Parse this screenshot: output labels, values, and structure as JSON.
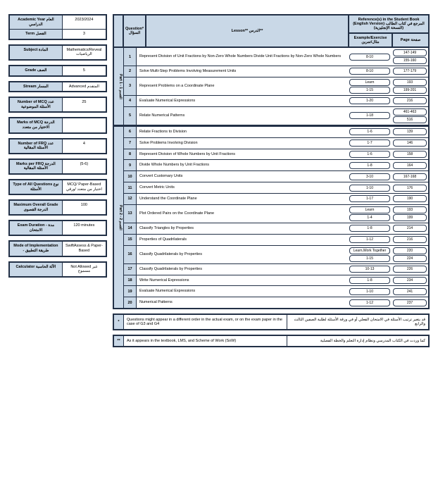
{
  "colors": {
    "border": "#223046",
    "header_bg": "#c9d8e7",
    "cell_bg": "#ffffff"
  },
  "sidebar": {
    "blocks": [
      [
        {
          "label": "Academic Year\nالعام الدراسي",
          "value": "2023/2024"
        },
        {
          "label": "Term\nالفصل",
          "value": "3"
        }
      ],
      [
        {
          "label": "Subject\nالمادة",
          "value": "Mathematics/Reveal\nالرياضيات"
        }
      ],
      [
        {
          "label": "Grade\nالصف",
          "value": "5"
        }
      ],
      [
        {
          "label": "Stream\nالمسار",
          "value": "Advanced\nالمتقدم"
        }
      ],
      [
        {
          "label": "Number of MCQ\nعدد الأسئلة الموضوعية",
          "value": "25"
        }
      ],
      [
        {
          "label": "Marks of MCQ\nالدرجة الاختيار من متعدد",
          "value": ""
        }
      ],
      [
        {
          "label": "Number of FRQ\nعدد الأسئلة المقالية",
          "value": "4"
        }
      ],
      [
        {
          "label": "Marks per FRQ\nالدرجة الأسئلة المقالية",
          "value": "(5-6)"
        }
      ],
      [
        {
          "label": "Type of All Questions\nنوع الأسئلة",
          "value": "MCQ/ Paper-Based\nاختيار من متعدد /ورقي"
        }
      ],
      [
        {
          "label": "Maximum Overall Grade\nالدرجة القصوى",
          "value": "100"
        }
      ],
      [
        {
          "label": "Exam Duration - مدة الامتحان",
          "value": "120 minutes"
        }
      ],
      [
        {
          "label": "Mode of Implementation - طريقة التطبيق",
          "value": "SwiftAssess & Paper-Based"
        }
      ],
      [
        {
          "label": "Calculator\nالآلة الحاسبة",
          "value": "Not Allowed\nغير مسموح"
        }
      ]
    ]
  },
  "header": {
    "q": "Question*\nالسؤال",
    "lesson": "Lesson**\nالدرس**",
    "ref": "Reference(s) in the Student Book (English Version)\nالمرجع في كتاب الطالب (النسخة الإنجليزية)",
    "example": "Example/Exercise\nمثال/تمرين",
    "page": "Page\nصفحة"
  },
  "groups": [
    {
      "tab": "Part 1 - القسم 1",
      "rows": [
        {
          "n": "1",
          "title": "Represent Division of Unit Fractions by Non-Zero Whole Numbers\nDivide Unit Fractions by Non-Zero Whole Numbers",
          "refs": [
            "8-10"
          ],
          "pages": [
            "147-149",
            "155-160"
          ]
        },
        {
          "n": "2",
          "title": "Solve Multi-Step Problems Involving Measurement Units",
          "refs": [
            "8-10"
          ],
          "pages": [
            "177-179"
          ]
        },
        {
          "n": "3",
          "title": "Represent Problems on a Coordinate Plane",
          "refs": [
            "Learn",
            "1-15"
          ],
          "pages": [
            "193",
            "199-201"
          ]
        },
        {
          "n": "4",
          "title": "Evaluate Numerical Expressions",
          "refs": [
            "1-20"
          ],
          "pages": [
            "216"
          ]
        },
        {
          "n": "5",
          "title": "Relate Numerical Patterns",
          "refs": [
            "1-18"
          ],
          "pages": [
            "461-463",
            "516"
          ]
        }
      ]
    },
    {
      "tab": "Part 2 - القسم 2",
      "rows": [
        {
          "n": "6",
          "title": "Relate Fractions to Division",
          "refs": [
            "1-6"
          ],
          "pages": [
            "139"
          ]
        },
        {
          "n": "7",
          "title": "Solve Problems Involving Division",
          "refs": [
            "1-7"
          ],
          "pages": [
            "146"
          ]
        },
        {
          "n": "8",
          "title": "Represent Division of Whole Numbers by Unit Fractions",
          "refs": [
            "1-6"
          ],
          "pages": [
            "158"
          ]
        },
        {
          "n": "9",
          "title": "Divide Whole Numbers by Unit Fractions",
          "refs": [
            "1-8"
          ],
          "pages": [
            "164"
          ]
        },
        {
          "n": "10",
          "title": "Convert Customary Units",
          "refs": [
            "3-10"
          ],
          "pages": [
            "167-168"
          ]
        },
        {
          "n": "11",
          "title": "Convert Metric Units",
          "refs": [
            "1-10"
          ],
          "pages": [
            "176"
          ]
        },
        {
          "n": "12",
          "title": "Understand the Coordinate Plane",
          "refs": [
            "1-17"
          ],
          "pages": [
            "190"
          ]
        },
        {
          "n": "13",
          "title": "Plot Ordered Pairs on the Coordinate Plane",
          "refs": [
            "Learn",
            "1-4"
          ],
          "pages": [
            "193",
            "199"
          ]
        },
        {
          "n": "14",
          "title": "Classify Triangles by Properties",
          "refs": [
            "1-8"
          ],
          "pages": [
            "214"
          ]
        },
        {
          "n": "15",
          "title": "Properties of Quadrilaterals",
          "refs": [
            "1-12"
          ],
          "pages": [
            "216"
          ]
        },
        {
          "n": "16",
          "title": "Classify Quadrilaterals by Properties",
          "refs": [
            "Learn,Work Together",
            "1-15"
          ],
          "pages": [
            "220",
            "224"
          ]
        },
        {
          "n": "17",
          "title": "Classify Quadrilaterals by Properties",
          "refs": [
            "10-13"
          ],
          "pages": [
            "226"
          ]
        },
        {
          "n": "18",
          "title": "Write Numerical Expressions",
          "refs": [
            "1-8"
          ],
          "pages": [
            "234"
          ]
        },
        {
          "n": "19",
          "title": "Evaluate Numerical Expressions",
          "refs": [
            "1-10"
          ],
          "pages": [
            "241"
          ]
        },
        {
          "n": "20",
          "title": "Numerical Patterns",
          "refs": [
            "1-12"
          ],
          "pages": [
            "237"
          ]
        }
      ]
    }
  ],
  "footers": [
    {
      "tag": "*",
      "left": "Questions might appear in a different order in the actual exam, or on the exam paper in the case of G3 and G4",
      "right": "قد يتغير ترتيب الأسئلة في الامتحان الفعلي أو في ورقة الأسئلة لطلبة الصفين الثالث والرابع"
    },
    {
      "tag": "**",
      "left": "As it appears in the textbook, LMS, and Scheme of Work (SoW)",
      "right": "كما وردت في الكتاب المدرسي ونظام إدارة التعلم والخطة الفصلية"
    }
  ]
}
